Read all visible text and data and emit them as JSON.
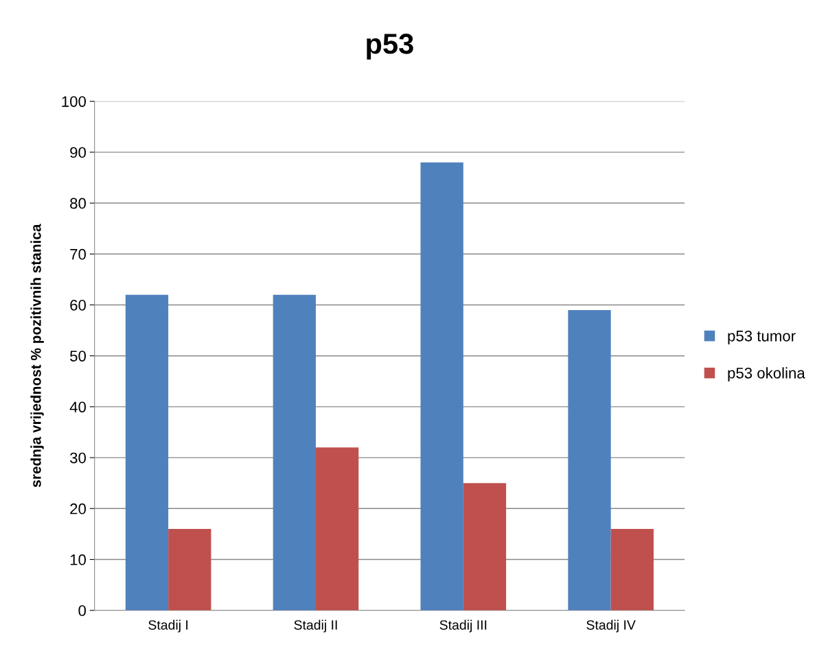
{
  "chart_data": {
    "type": "bar",
    "title": "p53",
    "ylabel": "srednja vrijednost % pozitivnih stanica",
    "categories": [
      "Stadij I",
      "Stadij II",
      "Stadij III",
      "Stadij IV"
    ],
    "series": [
      {
        "name": "p53 tumor",
        "color": "#4f81bd",
        "values": [
          62,
          62,
          88,
          59
        ]
      },
      {
        "name": "p53 okolina",
        "color": "#c0504d",
        "values": [
          16,
          32,
          25,
          16
        ]
      }
    ],
    "ylim": [
      0,
      100
    ],
    "yticks": [
      0,
      10,
      20,
      30,
      40,
      50,
      60,
      70,
      80,
      90,
      100
    ],
    "grid": "y",
    "legend": "right"
  }
}
